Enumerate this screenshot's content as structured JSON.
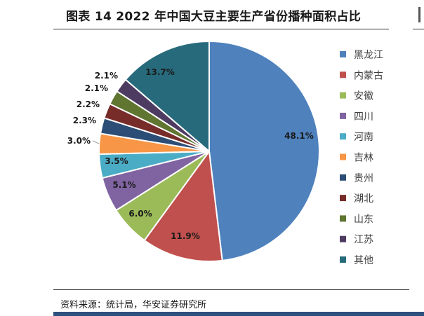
{
  "title": "图表 14 2022 年中国大豆主要生产省份播种面积占比",
  "source": "资料来源：统计局，华安证券研究所",
  "chart_data": {
    "type": "pie",
    "title": "图表 14 2022 年中国大豆主要生产省份播种面积占比",
    "legend_position": "right",
    "slices": [
      {
        "name": "黑龙江",
        "value": 48.1,
        "label": "48.1%",
        "color": "#4f81bd"
      },
      {
        "name": "内蒙古",
        "value": 11.9,
        "label": "11.9%",
        "color": "#c0504d"
      },
      {
        "name": "安徽",
        "value": 6.0,
        "label": "6.0%",
        "color": "#9bbb59"
      },
      {
        "name": "四川",
        "value": 5.1,
        "label": "5.1%",
        "color": "#8064a2"
      },
      {
        "name": "河南",
        "value": 3.5,
        "label": "3.5%",
        "color": "#4bacc6"
      },
      {
        "name": "吉林",
        "value": 3.0,
        "label": "3.0%",
        "color": "#f79646"
      },
      {
        "name": "贵州",
        "value": 2.3,
        "label": "2.3%",
        "color": "#2c4d75"
      },
      {
        "name": "湖北",
        "value": 2.2,
        "label": "2.2%",
        "color": "#772c2a"
      },
      {
        "name": "山东",
        "value": 2.1,
        "label": "2.1%",
        "color": "#5f7530"
      },
      {
        "name": "江苏",
        "value": 2.1,
        "label": "2.1%",
        "color": "#4d3b62"
      },
      {
        "name": "其他",
        "value": 13.7,
        "label": "13.7%",
        "color": "#276a7c"
      }
    ]
  }
}
